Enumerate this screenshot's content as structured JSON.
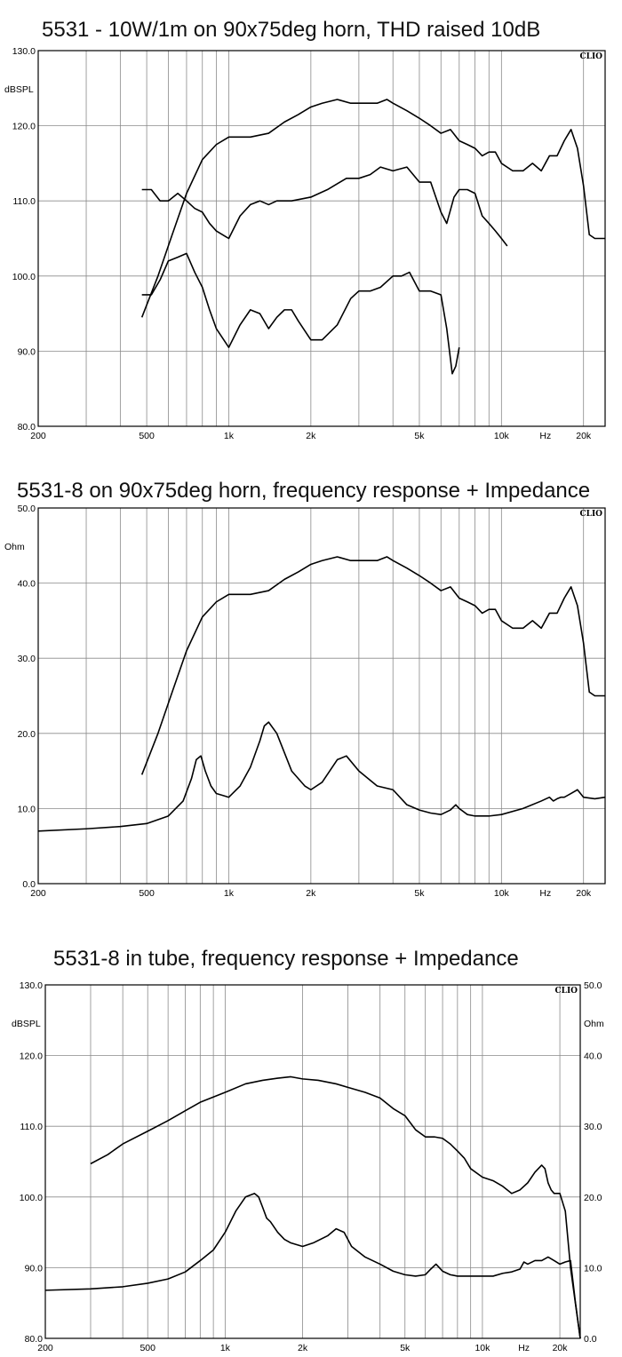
{
  "chart_data": [
    {
      "type": "line",
      "title": "5531 - 10W/1m on 90x75deg horn, THD raised 10dB",
      "brand": "CLIO",
      "xscale": "log",
      "xlim": [
        200,
        24000
      ],
      "xticks": [
        {
          "value": 200,
          "label": "200"
        },
        {
          "value": 500,
          "label": "500"
        },
        {
          "value": 1000,
          "label": "1k"
        },
        {
          "value": 2000,
          "label": "2k"
        },
        {
          "value": 5000,
          "label": "5k"
        },
        {
          "value": 10000,
          "label": "10k"
        },
        {
          "value": 14500,
          "label": "Hz"
        },
        {
          "value": 20000,
          "label": "20k"
        }
      ],
      "ylabel": "dBSPL",
      "ylim": [
        80,
        130
      ],
      "yticks": [
        80,
        90,
        100,
        110,
        120,
        130
      ],
      "ytick_labels": [
        "80.0",
        "90.0",
        "100.0",
        "110.0",
        "120.0",
        "130.0"
      ],
      "grid": true,
      "series": [
        {
          "x": [
            480,
            550,
            620,
            700,
            800,
            900,
            1000,
            1200,
            1400,
            1600,
            1800,
            2000,
            2200,
            2500,
            2800,
            3000,
            3500,
            3800,
            4000,
            4500,
            5000,
            5500,
            6000,
            6500,
            7000,
            7500,
            8000,
            8500,
            9000,
            9500,
            10000,
            11000,
            12000,
            13000,
            14000,
            15000,
            16000,
            17000,
            18000,
            19000,
            20000,
            21000,
            22000,
            23000,
            24000
          ],
          "y": [
            94.5,
            100,
            105.5,
            111,
            115.5,
            117.5,
            118.5,
            118.5,
            119,
            120.5,
            121.5,
            122.5,
            123,
            123.5,
            123,
            123,
            123,
            123.5,
            123,
            122,
            121,
            120,
            119,
            119.5,
            118,
            117.5,
            117,
            116,
            116.5,
            116.5,
            115,
            114,
            114,
            115,
            114,
            116,
            116,
            118,
            119.5,
            117,
            112,
            105.5,
            105,
            105,
            105
          ]
        },
        {
          "x": [
            480,
            520,
            560,
            600,
            650,
            700,
            750,
            800,
            850,
            900,
            1000,
            1100,
            1200,
            1300,
            1400,
            1500,
            1700,
            2000,
            2300,
            2700,
            3000,
            3300,
            3600,
            4000,
            4500,
            5000,
            5500,
            6000,
            6300,
            6700,
            7000,
            7500,
            8000,
            8500,
            9000,
            9500,
            10000,
            10500
          ],
          "y": [
            111.5,
            111.5,
            110,
            110,
            111,
            110,
            109,
            108.5,
            107,
            106,
            105,
            108,
            109.5,
            110,
            109.5,
            110,
            110,
            110.5,
            111.5,
            113,
            113,
            113.5,
            114.5,
            114,
            114.5,
            112.5,
            112.5,
            108.5,
            107,
            110.5,
            111.5,
            111.5,
            111,
            108,
            107,
            106,
            105,
            104
          ]
        },
        {
          "x": [
            480,
            520,
            560,
            600,
            650,
            700,
            750,
            800,
            850,
            900,
            1000,
            1100,
            1200,
            1300,
            1400,
            1500,
            1600,
            1700,
            1800,
            2000,
            2200,
            2500,
            2800,
            3000,
            3300,
            3600,
            4000,
            4300,
            4600,
            5000,
            5500,
            6000,
            6300,
            6600,
            6800,
            7000
          ],
          "y": [
            97.5,
            97.5,
            99.5,
            102,
            102.5,
            103,
            100.5,
            98.5,
            95.5,
            93,
            90.5,
            93.5,
            95.5,
            95,
            93,
            94.5,
            95.5,
            95.5,
            94,
            91.5,
            91.5,
            93.5,
            97,
            98,
            98,
            98.5,
            100,
            100,
            100.5,
            98,
            98,
            97.5,
            93,
            87,
            88,
            90.5
          ]
        }
      ]
    },
    {
      "type": "line",
      "title": "5531-8 on 90x75deg horn, frequency response + Impedance",
      "brand": "CLIO",
      "xscale": "log",
      "xlim": [
        200,
        24000
      ],
      "xticks": [
        {
          "value": 200,
          "label": "200"
        },
        {
          "value": 500,
          "label": "500"
        },
        {
          "value": 1000,
          "label": "1k"
        },
        {
          "value": 2000,
          "label": "2k"
        },
        {
          "value": 5000,
          "label": "5k"
        },
        {
          "value": 10000,
          "label": "10k"
        },
        {
          "value": 14500,
          "label": "Hz"
        },
        {
          "value": 20000,
          "label": "20k"
        }
      ],
      "ylabel": "Ohm",
      "ylim": [
        0,
        50
      ],
      "yticks": [
        0,
        10,
        20,
        30,
        40,
        50
      ],
      "ytick_labels": [
        "0.0",
        "10.0",
        "20.0",
        "30.0",
        "40.0",
        "50.0"
      ],
      "grid": true,
      "series": [
        {
          "x": [
            480,
            550,
            620,
            700,
            800,
            900,
            1000,
            1200,
            1400,
            1600,
            1800,
            2000,
            2200,
            2500,
            2800,
            3000,
            3500,
            3800,
            4000,
            4500,
            5000,
            5500,
            6000,
            6500,
            7000,
            7500,
            8000,
            8500,
            9000,
            9500,
            10000,
            11000,
            12000,
            13000,
            14000,
            15000,
            16000,
            17000,
            18000,
            19000,
            20000,
            21000,
            22000,
            23000,
            24000
          ],
          "y": [
            14.5,
            20,
            25.5,
            31,
            35.5,
            37.5,
            38.5,
            38.5,
            39,
            40.5,
            41.5,
            42.5,
            43,
            43.5,
            43,
            43,
            43,
            43.5,
            43,
            42,
            41,
            40,
            39,
            39.5,
            38,
            37.5,
            37,
            36,
            36.5,
            36.5,
            35,
            34,
            34,
            35,
            34,
            36,
            36,
            38,
            39.5,
            37,
            32,
            25.5,
            25,
            25,
            25
          ]
        },
        {
          "x": [
            200,
            300,
            400,
            500,
            600,
            680,
            730,
            760,
            790,
            820,
            860,
            900,
            1000,
            1100,
            1200,
            1300,
            1350,
            1400,
            1500,
            1700,
            1900,
            2000,
            2200,
            2500,
            2700,
            3000,
            3500,
            4000,
            4500,
            5000,
            5500,
            6000,
            6500,
            6800,
            7000,
            7500,
            8000,
            9000,
            10000,
            12000,
            14000,
            15000,
            15500,
            16000,
            16500,
            17000,
            18000,
            19000,
            20000,
            22000,
            24000
          ],
          "y": [
            7,
            7.3,
            7.6,
            8,
            9,
            11,
            14,
            16.5,
            17,
            15,
            13,
            12,
            11.5,
            13,
            15.5,
            19,
            21,
            21.5,
            20,
            15,
            13,
            12.5,
            13.5,
            16.5,
            17,
            15,
            13,
            12.5,
            10.5,
            9.8,
            9.4,
            9.2,
            9.8,
            10.5,
            10,
            9.2,
            9,
            9,
            9.2,
            10,
            11,
            11.5,
            11,
            11.3,
            11.5,
            11.5,
            12,
            12.5,
            11.5,
            11.3,
            11.5
          ]
        }
      ]
    },
    {
      "type": "line",
      "title": "5531-8 in tube, frequency response + Impedance",
      "brand": "CLIO",
      "xscale": "log",
      "xlim": [
        200,
        24000
      ],
      "xticks": [
        {
          "value": 200,
          "label": "200"
        },
        {
          "value": 500,
          "label": "500"
        },
        {
          "value": 1000,
          "label": "1k"
        },
        {
          "value": 2000,
          "label": "2k"
        },
        {
          "value": 5000,
          "label": "5k"
        },
        {
          "value": 10000,
          "label": "10k"
        },
        {
          "value": 14500,
          "label": "Hz"
        },
        {
          "value": 20000,
          "label": "20k"
        }
      ],
      "ylabel": "dBSPL",
      "ylim": [
        80,
        130
      ],
      "yticks": [
        80,
        90,
        100,
        110,
        120,
        130
      ],
      "ytick_labels": [
        "80.0",
        "90.0",
        "100.0",
        "110.0",
        "120.0",
        "130.0"
      ],
      "y2label": "Ohm",
      "y2lim": [
        0,
        50
      ],
      "y2ticks": [
        0,
        10,
        20,
        30,
        40,
        50
      ],
      "y2tick_labels": [
        "0.0",
        "10.0",
        "20.0",
        "30.0",
        "40.0",
        "50.0"
      ],
      "grid": true,
      "series": [
        {
          "axis": "y",
          "x": [
            300,
            350,
            400,
            500,
            600,
            700,
            800,
            1000,
            1200,
            1400,
            1600,
            1800,
            2000,
            2300,
            2700,
            3000,
            3500,
            4000,
            4500,
            5000,
            5500,
            6000,
            6500,
            7000,
            7500,
            8000,
            8500,
            9000,
            10000,
            11000,
            12000,
            13000,
            14000,
            15000,
            16000,
            17000,
            17500,
            18000,
            18500,
            19000,
            20000,
            21000,
            22000,
            24000
          ],
          "y": [
            104.7,
            106,
            107.5,
            109.3,
            110.8,
            112.2,
            113.4,
            114.8,
            116,
            116.5,
            116.8,
            117,
            116.7,
            116.5,
            116,
            115.5,
            114.8,
            114,
            112.5,
            111.5,
            109.5,
            108.5,
            108.5,
            108.3,
            107.5,
            106.5,
            105.5,
            104,
            102.8,
            102.3,
            101.5,
            100.5,
            101,
            102,
            103.5,
            104.5,
            104,
            102,
            101,
            100.5,
            100.5,
            98,
            90,
            80
          ]
        },
        {
          "axis": "y2",
          "x": [
            200,
            300,
            400,
            500,
            600,
            700,
            800,
            900,
            1000,
            1100,
            1200,
            1300,
            1350,
            1400,
            1450,
            1500,
            1600,
            1700,
            1800,
            2000,
            2200,
            2500,
            2700,
            2900,
            3100,
            3500,
            4000,
            4500,
            5000,
            5500,
            6000,
            6300,
            6600,
            6800,
            7000,
            7500,
            8000,
            9000,
            10000,
            11000,
            12000,
            13000,
            14000,
            14500,
            15000,
            16000,
            17000,
            18000,
            19000,
            20000,
            21000,
            22000,
            23000,
            24000
          ],
          "y": [
            6.8,
            7,
            7.3,
            7.8,
            8.4,
            9.4,
            11,
            12.5,
            15,
            18,
            20,
            20.5,
            20,
            18.5,
            17,
            16.5,
            15,
            14,
            13.5,
            13,
            13.5,
            14.5,
            15.5,
            15,
            13,
            11.5,
            10.5,
            9.5,
            9,
            8.8,
            9,
            9.8,
            10.5,
            10,
            9.5,
            9,
            8.8,
            8.8,
            8.8,
            8.8,
            9.2,
            9.4,
            9.8,
            10.8,
            10.5,
            11,
            11,
            11.5,
            11,
            10.5,
            10.8,
            11,
            5,
            0
          ]
        }
      ]
    }
  ]
}
